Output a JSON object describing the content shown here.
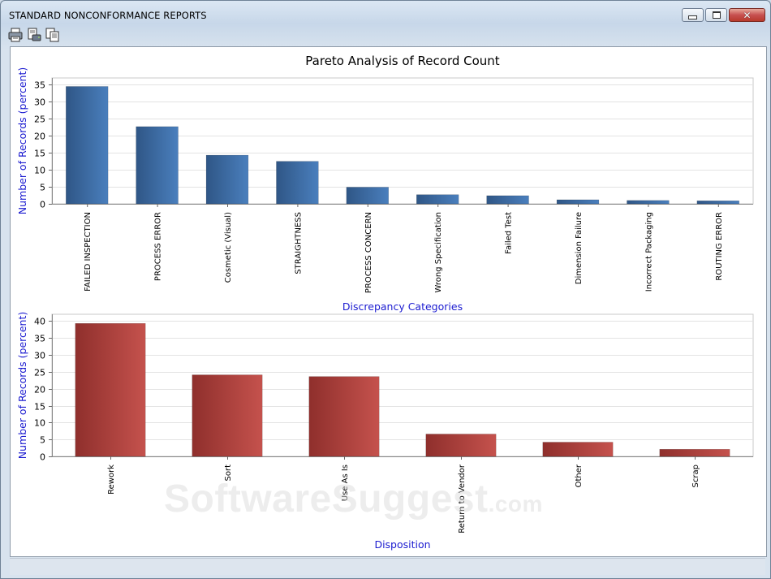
{
  "window": {
    "title": "STANDARD NONCONFORMANCE REPORTS"
  },
  "toolbar": {
    "icons": [
      "print-icon",
      "print-preview-icon",
      "copy-icon"
    ]
  },
  "watermark": {
    "text": "SoftwareSuggest",
    "suffix": ".com"
  },
  "chart_data": [
    {
      "type": "bar",
      "title": "Pareto Analysis of Record Count",
      "xlabel": "Discrepancy Categories",
      "ylabel": "Number of Records (percent)",
      "ylim": [
        0,
        37
      ],
      "yticks": [
        0,
        5,
        10,
        15,
        20,
        25,
        30,
        35
      ],
      "grid": true,
      "color": "#3f6ea7",
      "categories": [
        "FAILED INSPECTION",
        "PROCESS ERROR",
        "Cosmetic (Visual)",
        "STRAIGHTNESS",
        "PROCESS CONCERN",
        "Wrong Specification",
        "Failed Test",
        "Dimension Failure",
        "Incorrect Packaging",
        "ROUTING ERROR"
      ],
      "values": [
        34.5,
        22.7,
        14.3,
        12.5,
        4.9,
        2.7,
        2.4,
        1.2,
        1.0,
        0.9
      ]
    },
    {
      "type": "bar",
      "title": "",
      "xlabel": "Disposition",
      "ylabel": "Number of Records (percent)",
      "ylim": [
        0,
        42
      ],
      "yticks": [
        0,
        5,
        10,
        15,
        20,
        25,
        30,
        35,
        40
      ],
      "grid": true,
      "color": "#a8403d",
      "categories": [
        "Rework",
        "Sort",
        "Use As Is",
        "Return to Vendor",
        "Other",
        "Scrap"
      ],
      "values": [
        39.3,
        24.1,
        23.6,
        6.6,
        4.2,
        2.1
      ]
    }
  ]
}
